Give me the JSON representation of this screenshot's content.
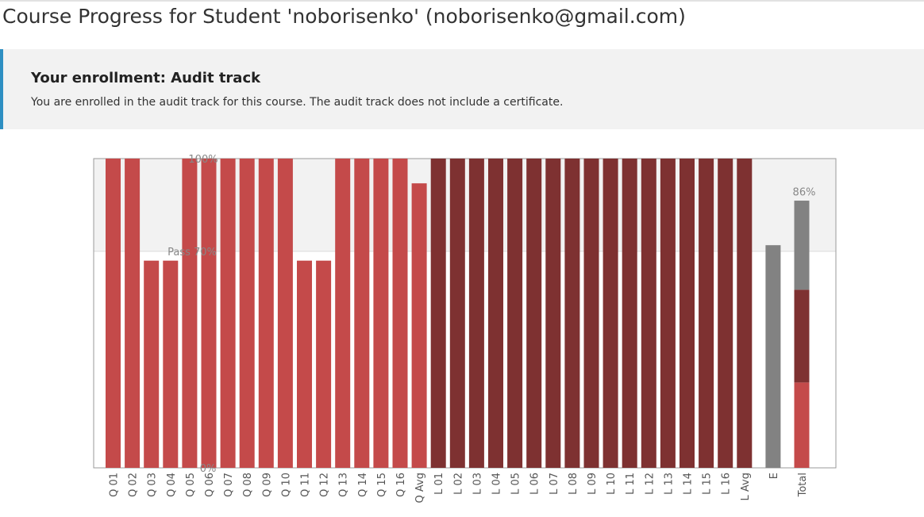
{
  "page": {
    "title": "Course Progress for Student 'noborisenko' (noborisenko@gmail.com)"
  },
  "enrollment": {
    "title": "Your enrollment: Audit track",
    "message": "You are enrolled in the audit track for this course. The audit track does not include a certificate."
  },
  "colors": {
    "quiz": "#c44a4a",
    "lab": "#7e3131",
    "exam": "#828282",
    "pass_band": "#f2f2f2",
    "accent": "#2e8fc2"
  },
  "chart_data": {
    "type": "bar",
    "ylim": [
      0,
      1
    ],
    "grid": false,
    "annotations": {
      "top": "100%",
      "pass": "Pass 70%",
      "bottom": "0%",
      "total": "86%"
    },
    "pass_cutoff": 0.7,
    "bars": [
      {
        "label": "Q 01",
        "value": 1.0,
        "group": "quiz"
      },
      {
        "label": "Q 02",
        "value": 1.0,
        "group": "quiz"
      },
      {
        "label": "Q 03",
        "value": 0.67,
        "group": "quiz"
      },
      {
        "label": "Q 04",
        "value": 0.67,
        "group": "quiz"
      },
      {
        "label": "Q 05",
        "value": 1.0,
        "group": "quiz"
      },
      {
        "label": "Q 06",
        "value": 1.0,
        "group": "quiz"
      },
      {
        "label": "Q 07",
        "value": 1.0,
        "group": "quiz"
      },
      {
        "label": "Q 08",
        "value": 1.0,
        "group": "quiz"
      },
      {
        "label": "Q 09",
        "value": 1.0,
        "group": "quiz"
      },
      {
        "label": "Q 10",
        "value": 1.0,
        "group": "quiz"
      },
      {
        "label": "Q 11",
        "value": 0.67,
        "group": "quiz"
      },
      {
        "label": "Q 12",
        "value": 0.67,
        "group": "quiz"
      },
      {
        "label": "Q 13",
        "value": 1.0,
        "group": "quiz"
      },
      {
        "label": "Q 14",
        "value": 1.0,
        "group": "quiz"
      },
      {
        "label": "Q 15",
        "value": 1.0,
        "group": "quiz"
      },
      {
        "label": "Q 16",
        "value": 1.0,
        "group": "quiz"
      },
      {
        "label": "Q Avg",
        "value": 0.92,
        "group": "quiz"
      },
      {
        "label": "L 01",
        "value": 1.0,
        "group": "lab"
      },
      {
        "label": "L 02",
        "value": 1.0,
        "group": "lab"
      },
      {
        "label": "L 03",
        "value": 1.0,
        "group": "lab"
      },
      {
        "label": "L 04",
        "value": 1.0,
        "group": "lab"
      },
      {
        "label": "L 05",
        "value": 1.0,
        "group": "lab"
      },
      {
        "label": "L 06",
        "value": 1.0,
        "group": "lab"
      },
      {
        "label": "L 07",
        "value": 1.0,
        "group": "lab"
      },
      {
        "label": "L 08",
        "value": 1.0,
        "group": "lab"
      },
      {
        "label": "L 09",
        "value": 1.0,
        "group": "lab"
      },
      {
        "label": "L 10",
        "value": 1.0,
        "group": "lab"
      },
      {
        "label": "L 11",
        "value": 1.0,
        "group": "lab"
      },
      {
        "label": "L 12",
        "value": 1.0,
        "group": "lab"
      },
      {
        "label": "L 13",
        "value": 1.0,
        "group": "lab"
      },
      {
        "label": "L 14",
        "value": 1.0,
        "group": "lab"
      },
      {
        "label": "L 15",
        "value": 1.0,
        "group": "lab"
      },
      {
        "label": "L 16",
        "value": 1.0,
        "group": "lab"
      },
      {
        "label": "L Avg",
        "value": 1.0,
        "group": "lab"
      },
      {
        "label": "E",
        "value": 0.72,
        "group": "exam",
        "gap_before": true
      }
    ],
    "total": {
      "label": "Total",
      "value": 0.86,
      "segments": [
        {
          "group": "quiz",
          "value": 0.276
        },
        {
          "group": "lab",
          "value": 0.3
        },
        {
          "group": "exam",
          "value": 0.288
        }
      ]
    }
  }
}
